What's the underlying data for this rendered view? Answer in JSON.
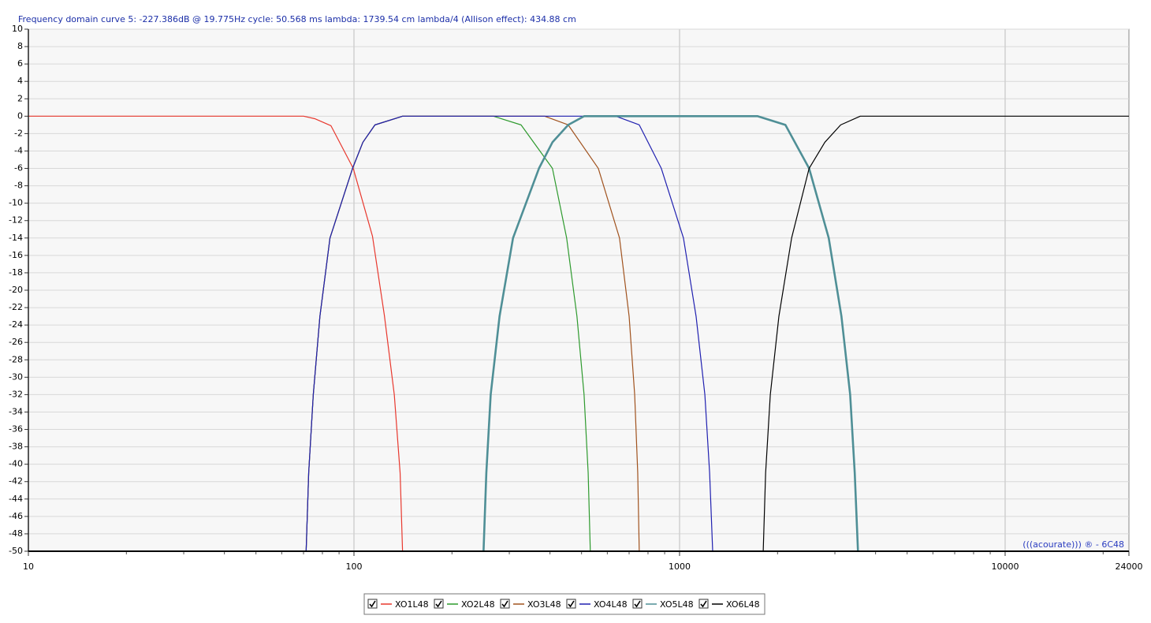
{
  "chart_data": {
    "type": "line",
    "title": "Frequency domain curve 5:  -227.386dB @ 19.775Hz    cycle: 50.568 ms   lambda: 1739.54 cm  lambda/4 (Allison effect): 434.88 cm",
    "annotation": "(((acourate))) ® - 6C48",
    "log_x": true,
    "grid": true,
    "xlim": [
      10,
      24000
    ],
    "xticks": [
      10,
      100,
      1000,
      10000,
      24000
    ],
    "xminorticks": [
      20,
      30,
      40,
      50,
      60,
      70,
      80,
      90,
      200,
      300,
      400,
      500,
      600,
      700,
      800,
      900,
      2000,
      3000,
      4000,
      5000,
      6000,
      7000,
      8000,
      9000,
      20000
    ],
    "ylim": [
      -50,
      10
    ],
    "yticks": [
      10,
      8,
      6,
      4,
      2,
      0,
      -2,
      -4,
      -6,
      -8,
      -10,
      -12,
      -14,
      -16,
      -18,
      -20,
      -22,
      -24,
      -26,
      -28,
      -30,
      -32,
      -34,
      -36,
      -38,
      -40,
      -42,
      -44,
      -46,
      -48,
      -50
    ],
    "series": [
      {
        "name": "XO1L48",
        "color": "#e8382e",
        "x": [
          10,
          70,
          76,
          85,
          99.5,
          114,
          124,
          133,
          138.6,
          141
        ],
        "values": [
          0,
          0,
          -0.3,
          -1.1,
          -6,
          -13.8,
          -22.9,
          -32,
          -41,
          -50
        ]
      },
      {
        "name": "XO2L48",
        "color": "#2e9a2e",
        "x": [
          71.3,
          72.6,
          75,
          78.6,
          84.4,
          99,
          106.5,
          116,
          141,
          268,
          326,
          407,
          450,
          484,
          509,
          524,
          532
        ],
        "values": [
          -50,
          -41,
          -32,
          -23,
          -14,
          -6,
          -3,
          -1,
          0,
          0,
          -1,
          -6,
          -14,
          -23,
          -32,
          -41,
          -50
        ]
      },
      {
        "name": "XO3L48",
        "color": "#a0521e",
        "x": [
          71.3,
          72.6,
          75,
          78.6,
          84.4,
          99,
          106.5,
          116,
          141,
          385,
          455,
          563,
          654,
          700,
          728,
          744,
          752
        ],
        "values": [
          -50,
          -41,
          -32,
          -23,
          -14,
          -6,
          -3,
          -1,
          0,
          0,
          -1,
          -6,
          -14,
          -23,
          -32,
          -41,
          -50
        ]
      },
      {
        "name": "XO4L48",
        "color": "#2020b0",
        "x": [
          71.3,
          72.6,
          75,
          78.6,
          84.4,
          99,
          106.5,
          116,
          141,
          637,
          752,
          879,
          1028,
          1124,
          1196,
          1237,
          1264
        ],
        "values": [
          -50,
          -41,
          -32,
          -23,
          -14,
          -6,
          -3,
          -1,
          0,
          0,
          -1,
          -6,
          -14,
          -23,
          -32,
          -41,
          -50
        ]
      },
      {
        "name": "XO5L48",
        "color": "#4f8f96",
        "x": [
          250,
          255,
          263,
          280,
          308,
          370,
          407,
          455,
          509,
          1738,
          2114,
          2500,
          2872,
          3142,
          3342,
          3452,
          3532
        ],
        "values": [
          -50,
          -41,
          -32,
          -23,
          -14,
          -6,
          -3,
          -1,
          0,
          0,
          -1,
          -6,
          -14,
          -23,
          -32,
          -41,
          -50
        ]
      },
      {
        "name": "XO6L48",
        "color": "#000000",
        "x": [
          1807,
          1838,
          1900,
          2019,
          2209,
          2500,
          2794,
          3125,
          3590,
          24000
        ],
        "values": [
          -50,
          -41,
          -32,
          -23,
          -14,
          -6,
          -3,
          -1,
          0,
          0
        ]
      }
    ]
  }
}
